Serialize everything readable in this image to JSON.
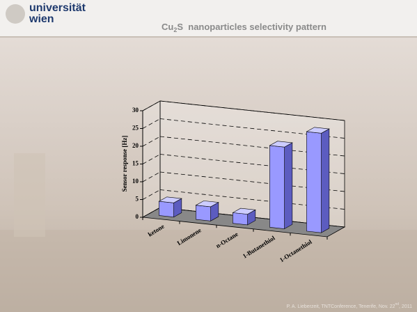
{
  "slide": {
    "logo_line1": "universität",
    "logo_line2": "wien",
    "title_main": "Cu",
    "title_sub": "2",
    "title_rest": "S  nanoparticles selectivity pattern",
    "footer_main": "P. A. Lieberzeit, TNTConference, Tenerife, Nov. 22",
    "footer_sup": "nd",
    "footer_rest": ", 2011"
  },
  "chart_data": {
    "type": "bar3d",
    "y_label": "Sensor response [Hz]",
    "categories": [
      "ketone",
      "Limonene",
      "n-Octane",
      "1-Butanethiol",
      "1-Octanethiol"
    ],
    "values": [
      4,
      4,
      3,
      23,
      28
    ],
    "color": "#9999ff",
    "ylim": [
      0,
      30
    ],
    "yticks": [
      0,
      5,
      10,
      15,
      20,
      25,
      30
    ],
    "grid": true
  }
}
